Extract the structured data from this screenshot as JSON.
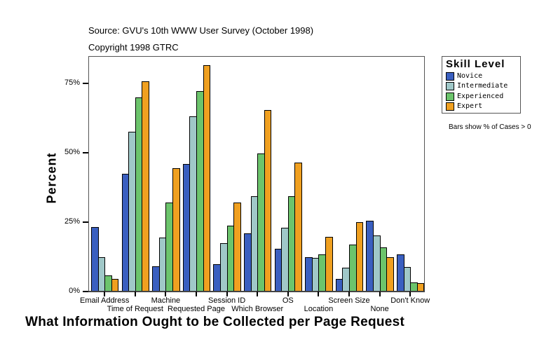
{
  "header": {
    "source": "Source: GVU's 10th WWW User Survey (October 1998)",
    "copyright": "Copyright 1998 GTRC"
  },
  "legend": {
    "title": "Skill Level",
    "items": [
      {
        "label": "Novice",
        "color": "#3a5fc0"
      },
      {
        "label": "Intermediate",
        "color": "#a0c8c8"
      },
      {
        "label": "Experienced",
        "color": "#6cc46c"
      },
      {
        "label": "Expert",
        "color": "#f0a020"
      }
    ]
  },
  "note": "Bars show % of Cases > 0",
  "chart_data": {
    "type": "bar",
    "title": "What Information Ought to be Collected per Page Request",
    "xlabel": "What Information Ought to be Collected per Page Request",
    "ylabel": "Percent",
    "ylim": [
      0,
      85
    ],
    "yticks": [
      "0%",
      "25%",
      "50%",
      "75%"
    ],
    "categories": [
      "Email Address",
      "Time of Request",
      "Machine",
      "Requested Page",
      "Session ID",
      "Which Browser",
      "OS",
      "Location",
      "Screen Size",
      "None",
      "Don't Know"
    ],
    "series": [
      {
        "name": "Novice",
        "color": "#3a5fc0",
        "values": [
          23.3,
          42.3,
          9.0,
          45.9,
          9.8,
          21.0,
          15.3,
          12.3,
          4.5,
          25.4,
          13.3
        ]
      },
      {
        "name": "Intermediate",
        "color": "#a0c8c8",
        "values": [
          12.4,
          57.5,
          19.4,
          63.1,
          17.3,
          34.3,
          22.9,
          12.0,
          8.5,
          20.1,
          8.8
        ]
      },
      {
        "name": "Experienced",
        "color": "#6cc46c",
        "values": [
          5.7,
          69.9,
          32.0,
          72.1,
          23.7,
          49.7,
          34.3,
          13.3,
          16.8,
          15.8,
          3.2
        ]
      },
      {
        "name": "Expert",
        "color": "#f0a020",
        "values": [
          4.5,
          75.8,
          44.4,
          81.5,
          32.0,
          65.3,
          46.4,
          19.6,
          24.9,
          12.3,
          3.0
        ]
      }
    ],
    "legend_position": "right",
    "grid": false
  }
}
